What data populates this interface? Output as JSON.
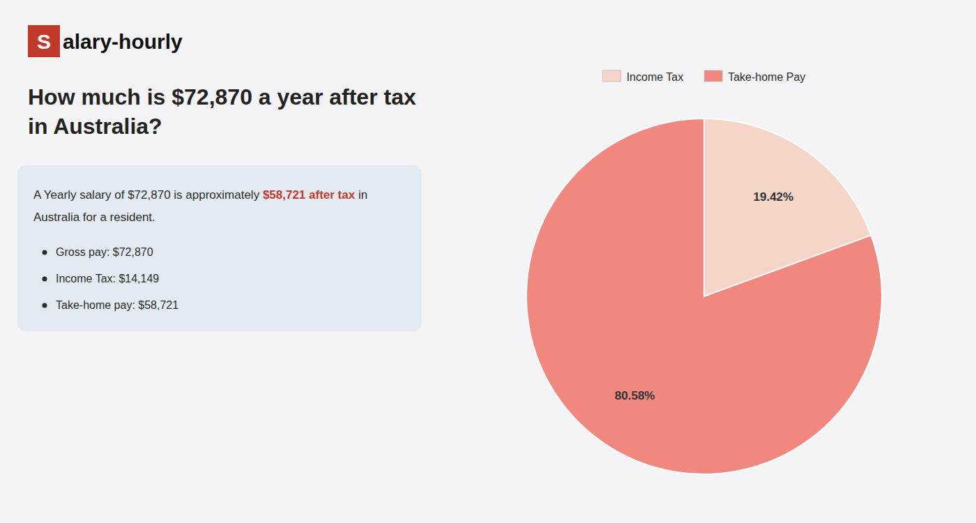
{
  "chart_data": {
    "type": "pie",
    "title": "How much is $72,870 a year after tax in Australia?",
    "annotations": [
      {
        "text": "S",
        "color": "#c0392b"
      },
      {
        "text": "alary-hourly"
      },
      {
        "text": "A Yearly salary of $72,870 is approximately "
      },
      {
        "text": "$58,721 after tax",
        "color": "#c0392b"
      },
      {
        "text": " in"
      },
      {
        "text": "Australia for a resident."
      },
      {
        "text": "Gross pay: $72,870"
      },
      {
        "text": "Income Tax: $14,149"
      },
      {
        "text": "Take-home pay: $58,721"
      }
    ],
    "categories": [
      "Income Tax",
      "Take-home Pay"
    ],
    "values": [
      19.42,
      80.58
    ],
    "value_labels": [
      "19.42%",
      "80.58%"
    ],
    "colors": [
      "#f5d5c8",
      "#f08880"
    ],
    "data_labels": true,
    "legend": "top"
  }
}
